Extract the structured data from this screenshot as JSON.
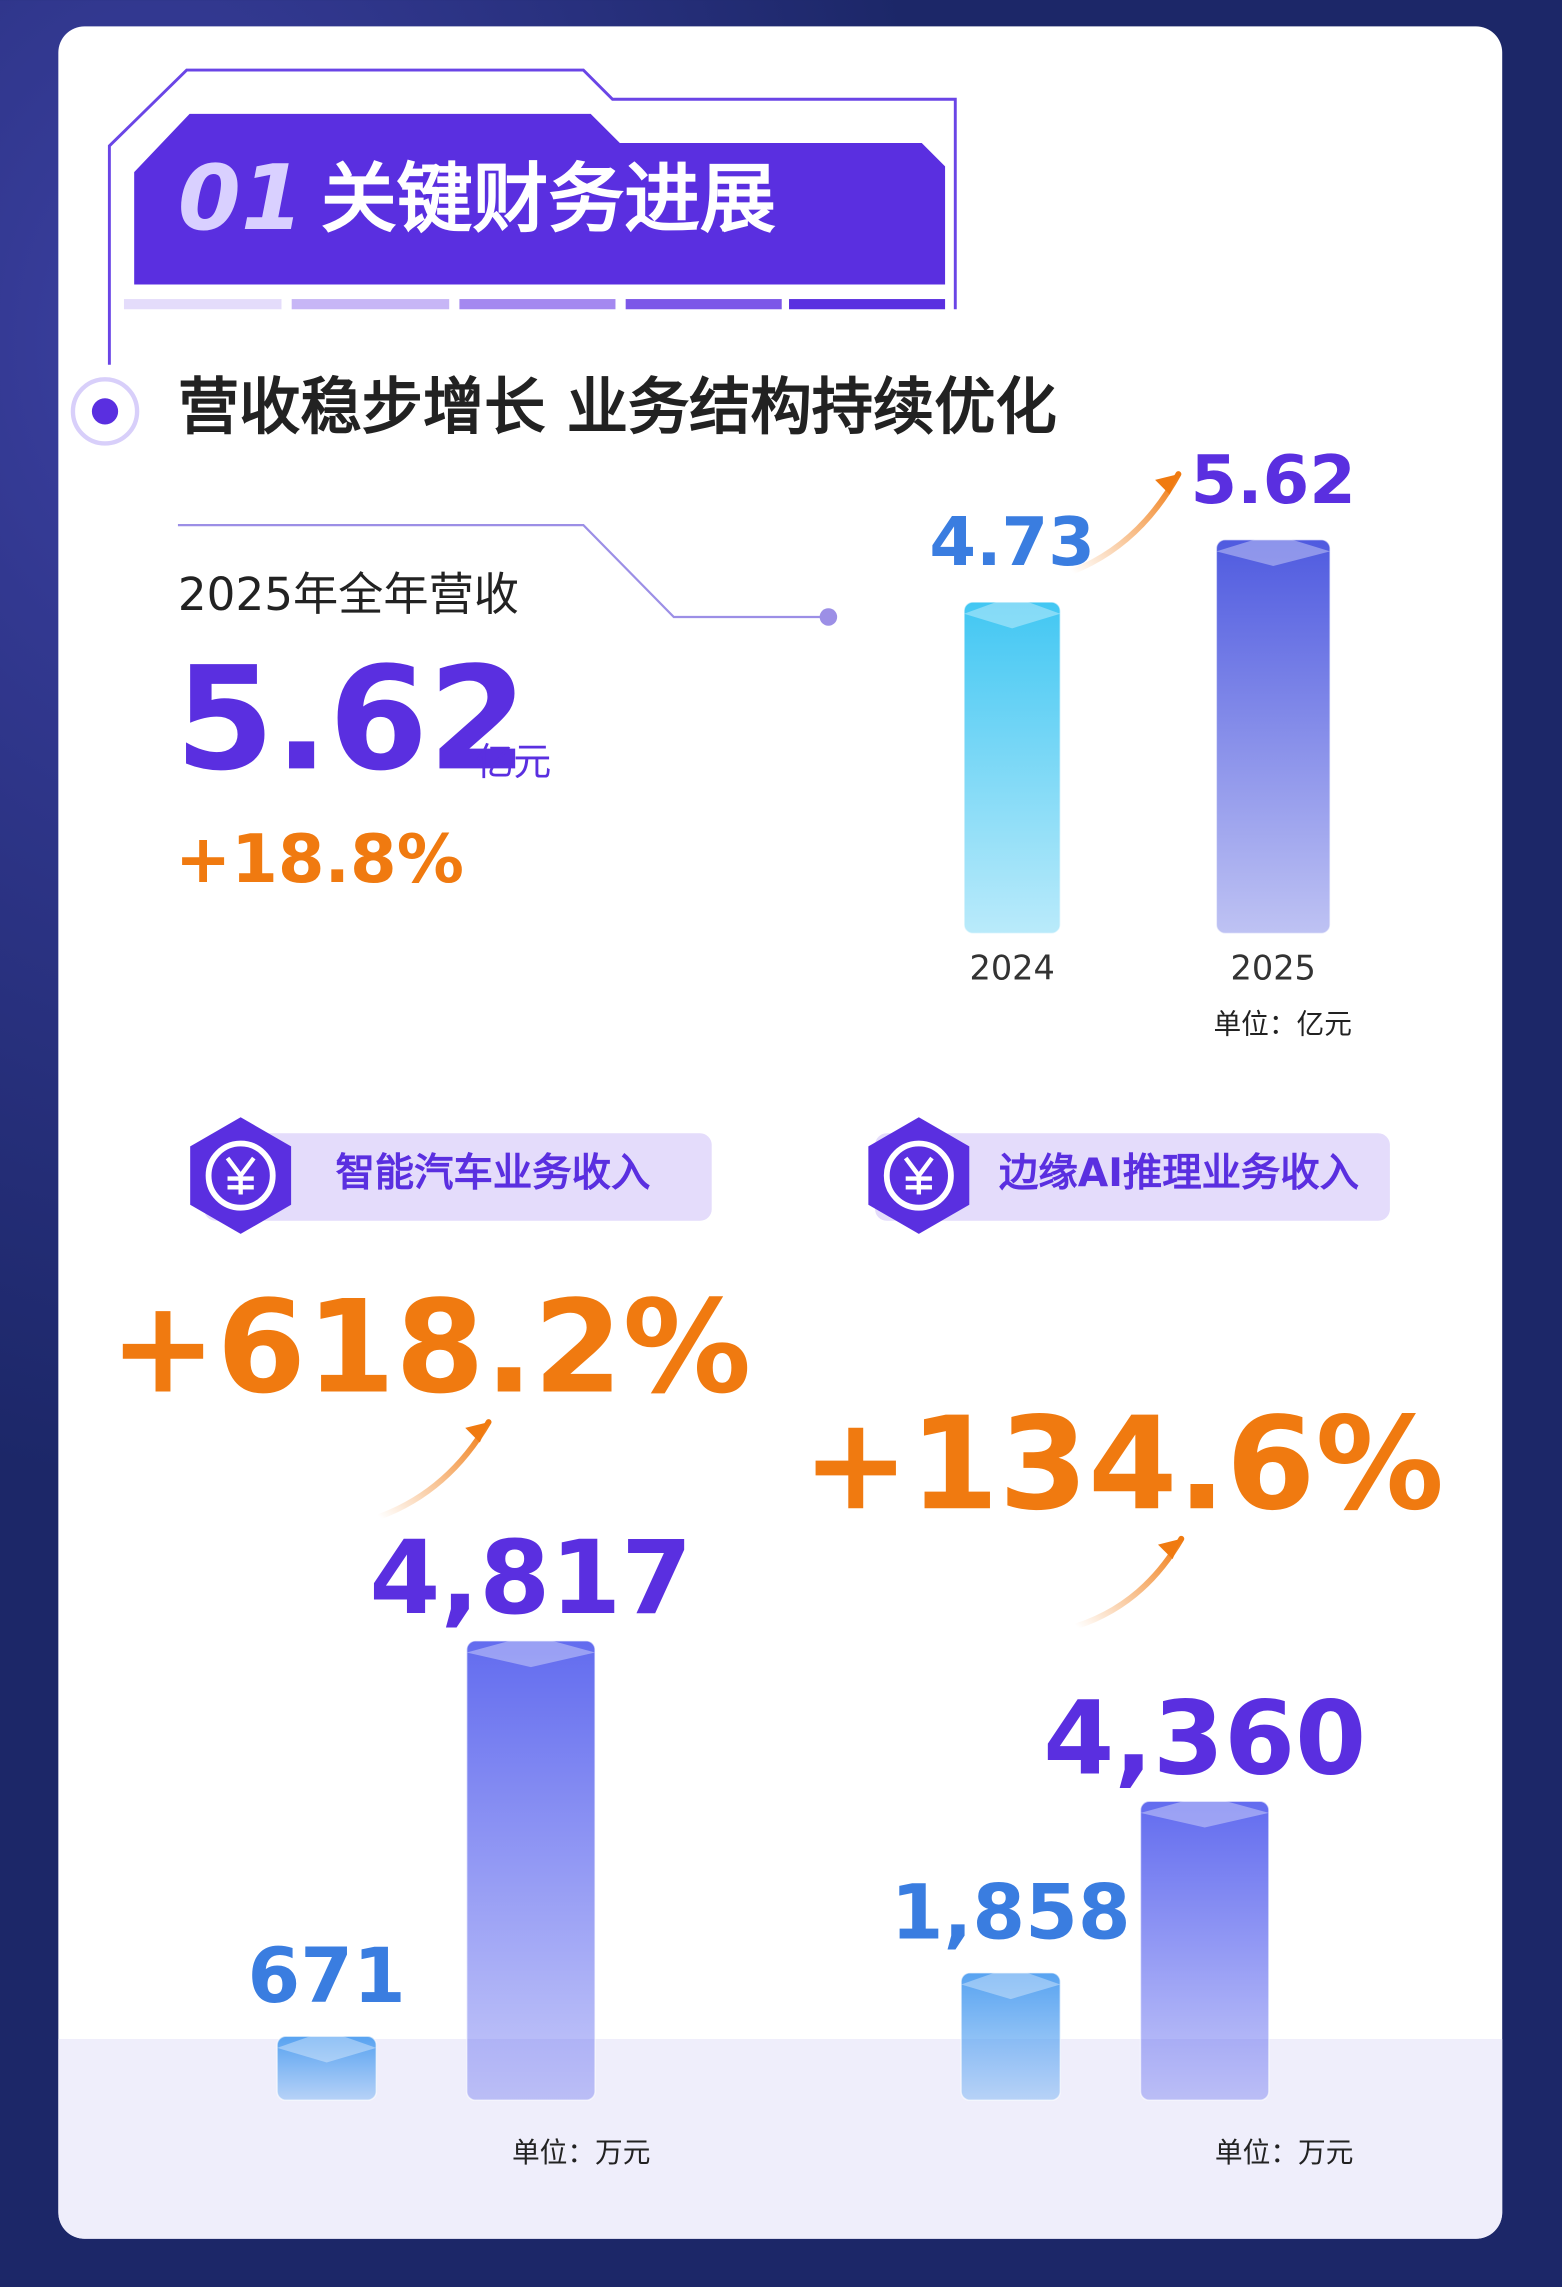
{
  "header": {
    "number": "01",
    "title": "关键财务进展"
  },
  "subtitle": "营收稳步增长 业务结构持续优化",
  "highlight": {
    "label": "2025年全年营收",
    "value": "5.62",
    "unit": "亿元",
    "growth": "+18.8%"
  },
  "chart_data": [
    {
      "type": "bar",
      "categories": [
        "2024",
        "2025"
      ],
      "values": [
        4.73,
        5.62
      ],
      "colors": [
        "#38c4f2",
        "#4652de"
      ],
      "note": "单位：亿元"
    },
    {
      "type": "bar",
      "title": "智能汽车业务收入",
      "growth": "+618.2%",
      "categories": [
        null,
        null
      ],
      "values": [
        671,
        4817
      ],
      "value_labels": [
        "671",
        "4,817"
      ],
      "colors": [
        "#4f9ef0",
        "#5a64ee"
      ],
      "note": "单位：万元"
    },
    {
      "type": "bar",
      "title": "边缘AI推理业务收入",
      "growth": "+134.6%",
      "categories": [
        null,
        null
      ],
      "values": [
        1858,
        4360
      ],
      "value_labels": [
        "1,858",
        "4,360"
      ],
      "colors": [
        "#4f9ef0",
        "#5a64ee"
      ],
      "note": "单位：万元"
    }
  ]
}
